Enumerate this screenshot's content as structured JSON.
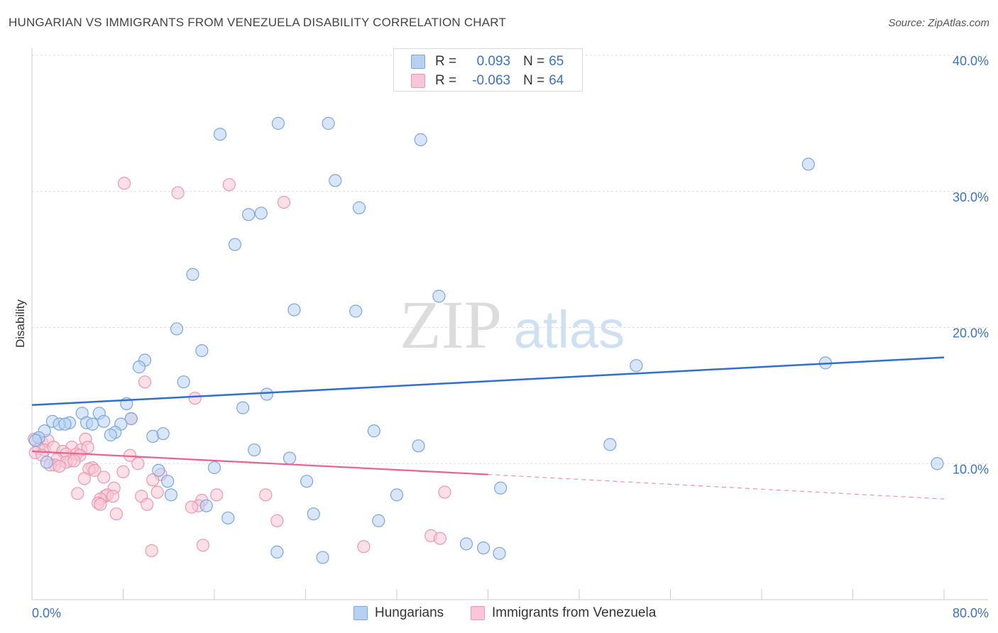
{
  "title": "HUNGARIAN VS IMMIGRANTS FROM VENEZUELA DISABILITY CORRELATION CHART",
  "source": "Source: ZipAtlas.com",
  "watermark": {
    "zip": "ZIP",
    "atlas": "atlas"
  },
  "legend": {
    "r_label": "R =",
    "n_label": "N =",
    "rows": [
      {
        "r": "0.093",
        "n": "65"
      },
      {
        "r": "-0.063",
        "n": "64"
      }
    ]
  },
  "colors": {
    "hungarians_fill": "#b8d1f3",
    "hungarians_stroke": "#7aa6e0",
    "hungarians_line": "#2f6fce",
    "venezuela_fill": "#f8c6d6",
    "venezuela_stroke": "#ee96b3",
    "venezuela_line": "#e8638f",
    "axis_text": "#3a72c4",
    "grid": "#dddddd"
  },
  "chart_data": {
    "type": "scatter",
    "title": "HUNGARIAN VS IMMIGRANTS FROM VENEZUELA DISABILITY CORRELATION CHART",
    "xlabel": "",
    "ylabel": "Disability",
    "xlim": [
      0,
      80
    ],
    "ylim": [
      0,
      40
    ],
    "x_tick_labels": [
      "0.0%",
      "80.0%"
    ],
    "y_ticks": [
      10,
      20,
      30,
      40
    ],
    "y_tick_labels": [
      "10.0%",
      "20.0%",
      "30.0%",
      "40.0%"
    ],
    "legend_position": "bottom-center",
    "series": [
      {
        "name": "Hungarians",
        "r": 0.093,
        "n": 65,
        "trend": {
          "x": [
            0,
            80
          ],
          "y": [
            14.3,
            17.8
          ]
        },
        "points": [
          [
            16.5,
            34.2
          ],
          [
            21.6,
            35.0
          ],
          [
            26.0,
            35.0
          ],
          [
            34.1,
            33.8
          ],
          [
            68.1,
            32.0
          ],
          [
            26.6,
            30.8
          ],
          [
            19.0,
            28.3
          ],
          [
            20.1,
            28.4
          ],
          [
            28.7,
            28.8
          ],
          [
            17.8,
            26.1
          ],
          [
            14.1,
            23.9
          ],
          [
            35.7,
            22.3
          ],
          [
            23.0,
            21.3
          ],
          [
            28.4,
            21.2
          ],
          [
            12.7,
            19.9
          ],
          [
            14.9,
            18.3
          ],
          [
            9.9,
            17.6
          ],
          [
            9.4,
            17.1
          ],
          [
            53.0,
            17.2
          ],
          [
            69.6,
            17.4
          ],
          [
            13.3,
            16.0
          ],
          [
            20.6,
            15.1
          ],
          [
            8.3,
            14.4
          ],
          [
            18.5,
            14.1
          ],
          [
            4.4,
            13.7
          ],
          [
            5.9,
            13.7
          ],
          [
            8.7,
            13.3
          ],
          [
            1.8,
            13.1
          ],
          [
            3.3,
            13.0
          ],
          [
            2.4,
            12.9
          ],
          [
            2.9,
            12.9
          ],
          [
            4.8,
            13.0
          ],
          [
            5.3,
            12.9
          ],
          [
            6.3,
            13.1
          ],
          [
            7.8,
            12.9
          ],
          [
            1.1,
            12.4
          ],
          [
            7.3,
            12.3
          ],
          [
            6.9,
            12.1
          ],
          [
            10.6,
            12.0
          ],
          [
            11.5,
            12.2
          ],
          [
            30.0,
            12.4
          ],
          [
            0.6,
            11.9
          ],
          [
            0.3,
            11.7
          ],
          [
            33.9,
            11.3
          ],
          [
            50.7,
            11.4
          ],
          [
            19.5,
            11.0
          ],
          [
            22.6,
            10.4
          ],
          [
            1.3,
            10.1
          ],
          [
            79.4,
            10.0
          ],
          [
            16.0,
            9.7
          ],
          [
            11.1,
            9.5
          ],
          [
            11.9,
            8.7
          ],
          [
            24.1,
            8.7
          ],
          [
            41.1,
            8.2
          ],
          [
            12.2,
            7.7
          ],
          [
            32.0,
            7.7
          ],
          [
            15.3,
            6.9
          ],
          [
            17.2,
            6.0
          ],
          [
            24.7,
            6.3
          ],
          [
            30.4,
            5.8
          ],
          [
            21.5,
            3.5
          ],
          [
            38.1,
            4.1
          ],
          [
            39.6,
            3.8
          ],
          [
            41.0,
            3.4
          ],
          [
            25.5,
            3.1
          ]
        ]
      },
      {
        "name": "Immigrants from Venezuela",
        "r": -0.063,
        "n": 64,
        "trend": {
          "x": [
            0,
            40
          ],
          "y": [
            10.9,
            9.2
          ]
        },
        "trend_dashed": {
          "x": [
            40,
            80
          ],
          "y": [
            9.2,
            7.4
          ]
        },
        "points": [
          [
            8.1,
            30.6
          ],
          [
            12.8,
            29.9
          ],
          [
            17.3,
            30.5
          ],
          [
            22.1,
            29.2
          ],
          [
            9.9,
            16.0
          ],
          [
            14.3,
            14.8
          ],
          [
            8.7,
            13.3
          ],
          [
            0.2,
            11.8
          ],
          [
            0.9,
            11.5
          ],
          [
            1.4,
            11.7
          ],
          [
            4.7,
            11.8
          ],
          [
            3.5,
            11.2
          ],
          [
            4.3,
            11.0
          ],
          [
            4.9,
            11.2
          ],
          [
            0.6,
            11.1
          ],
          [
            1.1,
            11.0
          ],
          [
            1.9,
            11.2
          ],
          [
            2.7,
            10.9
          ],
          [
            3.0,
            10.7
          ],
          [
            3.9,
            10.7
          ],
          [
            0.3,
            10.8
          ],
          [
            0.9,
            10.6
          ],
          [
            4.2,
            10.6
          ],
          [
            8.6,
            10.6
          ],
          [
            2.2,
            10.3
          ],
          [
            3.4,
            10.2
          ],
          [
            3.0,
            10.1
          ],
          [
            3.7,
            10.2
          ],
          [
            2.0,
            9.9
          ],
          [
            1.6,
            9.9
          ],
          [
            2.4,
            9.8
          ],
          [
            5.3,
            9.7
          ],
          [
            9.3,
            10.0
          ],
          [
            5.0,
            9.6
          ],
          [
            5.5,
            9.5
          ],
          [
            8.0,
            9.4
          ],
          [
            11.3,
            9.2
          ],
          [
            6.3,
            9.0
          ],
          [
            4.6,
            8.9
          ],
          [
            10.6,
            8.8
          ],
          [
            7.2,
            8.2
          ],
          [
            4.0,
            7.8
          ],
          [
            11.0,
            7.9
          ],
          [
            6.4,
            7.6
          ],
          [
            6.6,
            7.7
          ],
          [
            7.1,
            7.6
          ],
          [
            9.6,
            7.6
          ],
          [
            16.2,
            7.7
          ],
          [
            20.5,
            7.7
          ],
          [
            36.2,
            7.9
          ],
          [
            6.0,
            7.4
          ],
          [
            14.9,
            7.3
          ],
          [
            5.8,
            7.1
          ],
          [
            6.0,
            7.0
          ],
          [
            10.1,
            7.0
          ],
          [
            14.6,
            6.9
          ],
          [
            14.0,
            6.8
          ],
          [
            7.4,
            6.3
          ],
          [
            21.5,
            5.8
          ],
          [
            35.0,
            4.7
          ],
          [
            35.8,
            4.5
          ],
          [
            15.0,
            4.0
          ],
          [
            29.1,
            3.9
          ],
          [
            10.5,
            3.6
          ]
        ]
      }
    ]
  }
}
